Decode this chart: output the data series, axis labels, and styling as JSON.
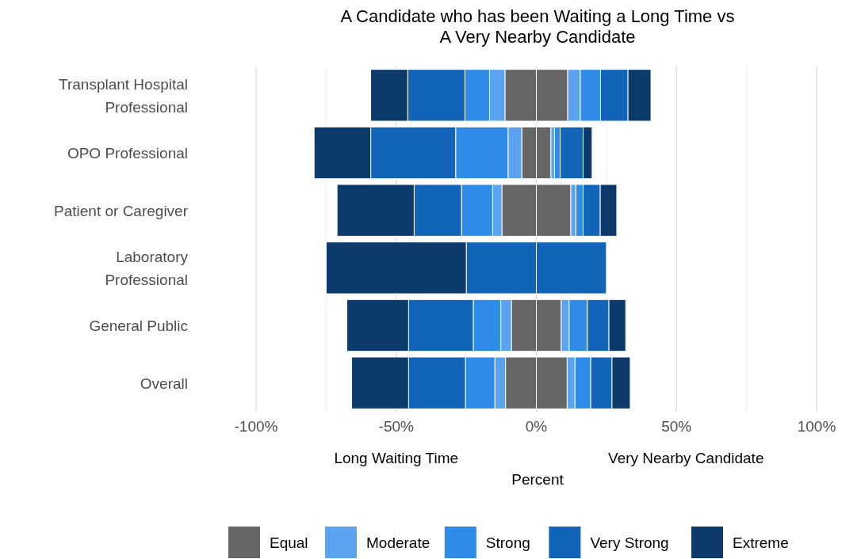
{
  "chart_data": {
    "type": "bar",
    "orientation": "horizontal",
    "stacked": true,
    "title": "A Candidate who has been Waiting a Long Time vs\nA Very Nearby Candidate",
    "xlabel": "Percent",
    "annotations": [
      "Long Waiting Time",
      "Very Nearby Candidate"
    ],
    "categories": [
      "Transplant Hospital Professional",
      "OPO Professional",
      "Patient or Caregiver",
      "Laboratory Professional",
      "General Public",
      "Overall"
    ],
    "series": [
      {
        "color": "#666666",
        "values": [
          -11.2,
          -5.2,
          -12.3,
          null,
          -8.9,
          -11.0
        ]
      },
      {
        "color": "#5ba3ee",
        "values": [
          -5.5,
          -4.9,
          -3.3,
          null,
          -3.8,
          -3.8
        ]
      },
      {
        "color": "#2e8be8",
        "values": [
          -8.8,
          -18.7,
          -11.1,
          null,
          -9.8,
          -10.5
        ]
      },
      {
        "color": "#1164b8",
        "values": [
          -20.4,
          -30.3,
          -16.9,
          -25.0,
          -23.1,
          -20.3
        ]
      },
      {
        "color": "#0b3a6b",
        "values": [
          -13.2,
          -20.2,
          -27.5,
          -50.0,
          -22.0,
          -20.3
        ]
      },
      {
        "name": "Equal",
        "color": "#666666",
        "values": [
          11.2,
          5.2,
          12.3,
          null,
          8.9,
          11.0
        ]
      },
      {
        "name": "Moderate",
        "color": "#5ba3ee",
        "values": [
          4.5,
          1.3,
          1.8,
          null,
          2.8,
          2.8
        ]
      },
      {
        "name": "Strong",
        "color": "#2e8be8",
        "values": [
          7.2,
          2.0,
          2.6,
          null,
          6.5,
          5.6
        ]
      },
      {
        "name": "Very Strong",
        "color": "#1164b8",
        "values": [
          9.8,
          8.2,
          6.1,
          25.0,
          7.7,
          7.6
        ]
      },
      {
        "name": "Extreme",
        "color": "#0b3a6b",
        "values": [
          8.2,
          3.2,
          5.9,
          null,
          6.0,
          6.5
        ]
      }
    ],
    "xlim": [
      -100,
      100
    ],
    "xticks": [
      {
        "value": -100,
        "label": "-100%"
      },
      {
        "value": -75,
        "label": null
      },
      {
        "value": -50,
        "label": "-50%"
      },
      {
        "value": -25,
        "label": null
      },
      {
        "value": 0,
        "label": "0%"
      },
      {
        "value": 25,
        "label": null
      },
      {
        "value": 50,
        "label": "50%"
      },
      {
        "value": 75,
        "label": null
      },
      {
        "value": 100,
        "label": "100%"
      }
    ],
    "grid": "x",
    "legend": "bottom"
  }
}
